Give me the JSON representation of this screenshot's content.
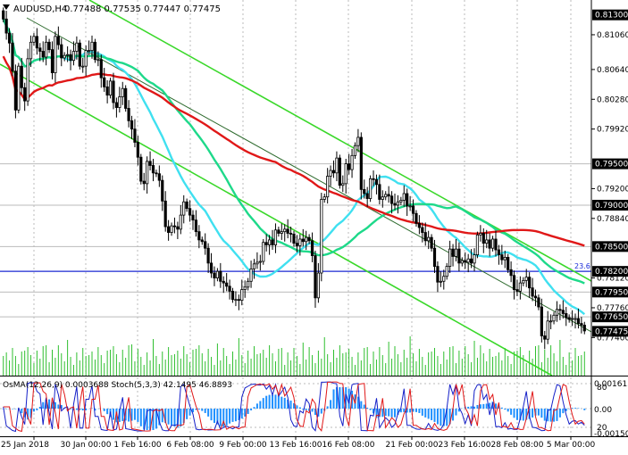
{
  "header": {
    "title": "AUDUSD,H4",
    "quote": "0.77488 0.77535 0.77447 0.77475"
  },
  "colors": {
    "background": "#ffffff",
    "candle": "#000000",
    "ma_fast": "#40e0f0",
    "ma_medium": "#1ed98a",
    "ma_slow": "#e01818",
    "channel": "#3ad82a",
    "trendline": "#2e6b2e",
    "support_line": "#1f2bd6",
    "volume": "#2fbf2f",
    "grid": "#bbbbbb",
    "price_tag": "#000000",
    "current_tag": "#000000",
    "osma_hist": "#1e90ff",
    "stoch_main": "#1520c8",
    "stoch_signal": "#e01818"
  },
  "price_axis": {
    "ticks": [
      "0.81300",
      "0.81060",
      "0.80640",
      "0.80280",
      "0.79920",
      "0.79500",
      "0.79200",
      "0.78840",
      "0.78500",
      "0.78200",
      "0.78120",
      "0.77950",
      "0.77760",
      "0.77650",
      "0.77475",
      "0.77400"
    ],
    "tagged": [
      "0.81300",
      "0.79500",
      "0.79000",
      "0.78500",
      "0.78200",
      "0.77950",
      "0.77650"
    ],
    "current": "0.77475"
  },
  "fib_label": "23.6",
  "indicator": {
    "label": "OsMA(12,26,9) 0.0003688 Stoch(5,3,3) 42.1495 46.8893",
    "axis": [
      "0.001613",
      "80",
      "0.00",
      "20",
      "-0.00150"
    ]
  },
  "time_axis": [
    "25 Jan 2018",
    "30 Jan 00:00",
    "1 Feb 16:00",
    "6 Feb 08:00",
    "9 Feb 00:00",
    "13 Feb 16:00",
    "16 Feb 08:00",
    "21 Feb 00:00",
    "23 Feb 16:00",
    "28 Feb 08:00",
    "5 Mar 00:00"
  ],
  "chart_data": {
    "type": "candlestick",
    "symbol": "AUDUSD",
    "timeframe": "H4",
    "last_price": 0.77475,
    "y_range": [
      0.7694,
      0.8148
    ],
    "horizontal_levels": [
      0.795,
      0.79,
      0.785,
      0.782,
      0.7795,
      0.7765
    ],
    "support_line_level": 0.782,
    "fib_level": 23.6,
    "candles_close": [
      0.8125,
      0.8108,
      0.8096,
      0.8062,
      0.8015,
      0.8068,
      0.8042,
      0.8026,
      0.8077,
      0.8097,
      0.8104,
      0.809,
      0.8086,
      0.8079,
      0.8097,
      0.8088,
      0.806,
      0.8104,
      0.8094,
      0.8078,
      0.8081,
      0.8082,
      0.8075,
      0.8086,
      0.8096,
      0.8068,
      0.8068,
      0.8087,
      0.8087,
      0.8097,
      0.8076,
      0.8076,
      0.8054,
      0.8043,
      0.8033,
      0.805,
      0.8024,
      0.8018,
      0.8031,
      0.8041,
      0.8017,
      0.8002,
      0.7992,
      0.7976,
      0.7958,
      0.7929,
      0.7926,
      0.7953,
      0.7948,
      0.7939,
      0.7938,
      0.793,
      0.7905,
      0.7874,
      0.7867,
      0.7875,
      0.7874,
      0.7871,
      0.7888,
      0.7904,
      0.7896,
      0.7888,
      0.7882,
      0.7868,
      0.7858,
      0.7856,
      0.7848,
      0.783,
      0.7818,
      0.7812,
      0.782,
      0.7808,
      0.7806,
      0.7802,
      0.7796,
      0.7786,
      0.7786,
      0.7785,
      0.7798,
      0.7801,
      0.7808,
      0.7823,
      0.7829,
      0.7831,
      0.7832,
      0.7855,
      0.7852,
      0.7858,
      0.7852,
      0.787,
      0.7866,
      0.7868,
      0.7871,
      0.7866,
      0.7865,
      0.7854,
      0.7851,
      0.7859,
      0.7856,
      0.7861,
      0.7857,
      0.7839,
      0.7788,
      0.7818,
      0.7907,
      0.791,
      0.7935,
      0.7942,
      0.7939,
      0.7957,
      0.7924,
      0.7926,
      0.795,
      0.7943,
      0.796,
      0.7972,
      0.7982,
      0.7919,
      0.7914,
      0.7908,
      0.7932,
      0.7931,
      0.7925,
      0.7907,
      0.791,
      0.7913,
      0.7911,
      0.7902,
      0.79,
      0.7904,
      0.7906,
      0.7914,
      0.7899,
      0.7899,
      0.789,
      0.7878,
      0.7873,
      0.7867,
      0.7857,
      0.7861,
      0.7848,
      0.7826,
      0.7807,
      0.7808,
      0.7814,
      0.7826,
      0.7847,
      0.7838,
      0.7847,
      0.783,
      0.7833,
      0.7831,
      0.7835,
      0.783,
      0.784,
      0.7864,
      0.7866,
      0.7854,
      0.7858,
      0.7848,
      0.7859,
      0.7846,
      0.784,
      0.7834,
      0.7837,
      0.7822,
      0.7815,
      0.7798,
      0.7796,
      0.7806,
      0.7809,
      0.7813,
      0.78,
      0.779,
      0.7788,
      0.7777,
      0.7742,
      0.7738,
      0.776,
      0.776,
      0.7767,
      0.7774,
      0.7773,
      0.7769,
      0.7764,
      0.7762,
      0.7763,
      0.7763,
      0.7757,
      0.7755,
      0.7748
    ]
  }
}
